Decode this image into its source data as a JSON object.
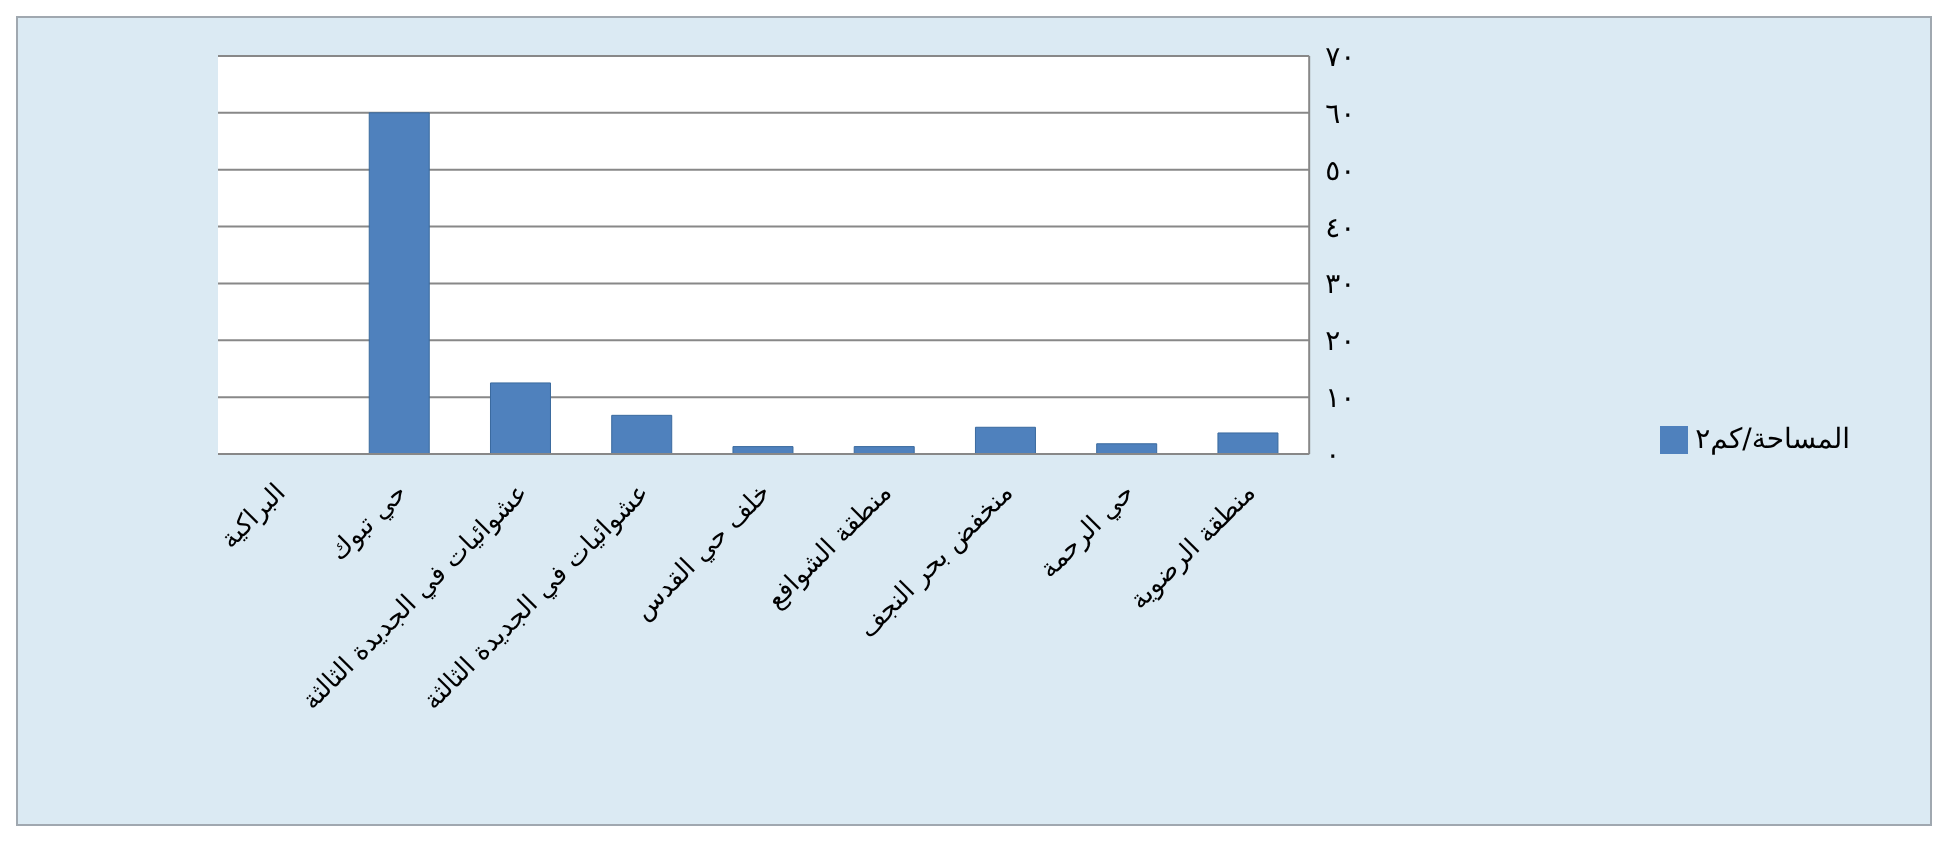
{
  "chart_data": {
    "type": "bar",
    "categories": [
      "البراكية",
      "حي تبوك",
      "عشوائيات في الجديدة الثالثة",
      "عشوائيات في الجديدة الثالثة",
      "خلف حي القدس",
      "منطقة الشوافع",
      "منخفض بحر النجف",
      "حي الرحمة",
      "منطقة الرضوية"
    ],
    "series": [
      {
        "name": "المساحة/كم٢",
        "color": "#4f81bd",
        "values": [
          0,
          60,
          12.5,
          6.8,
          1.3,
          1.3,
          4.7,
          1.8,
          3.7
        ]
      }
    ],
    "ylim": [
      0,
      70
    ],
    "yticks": [
      {
        "value": 0,
        "label": "٠"
      },
      {
        "value": 10,
        "label": "١٠"
      },
      {
        "value": 20,
        "label": "٢٠"
      },
      {
        "value": 30,
        "label": "٣٠"
      },
      {
        "value": 40,
        "label": "٤٠"
      },
      {
        "value": 50,
        "label": "٥٠"
      },
      {
        "value": 60,
        "label": "٦٠"
      },
      {
        "value": 70,
        "label": "٧٠"
      }
    ],
    "grid": "y",
    "legend": "right"
  }
}
